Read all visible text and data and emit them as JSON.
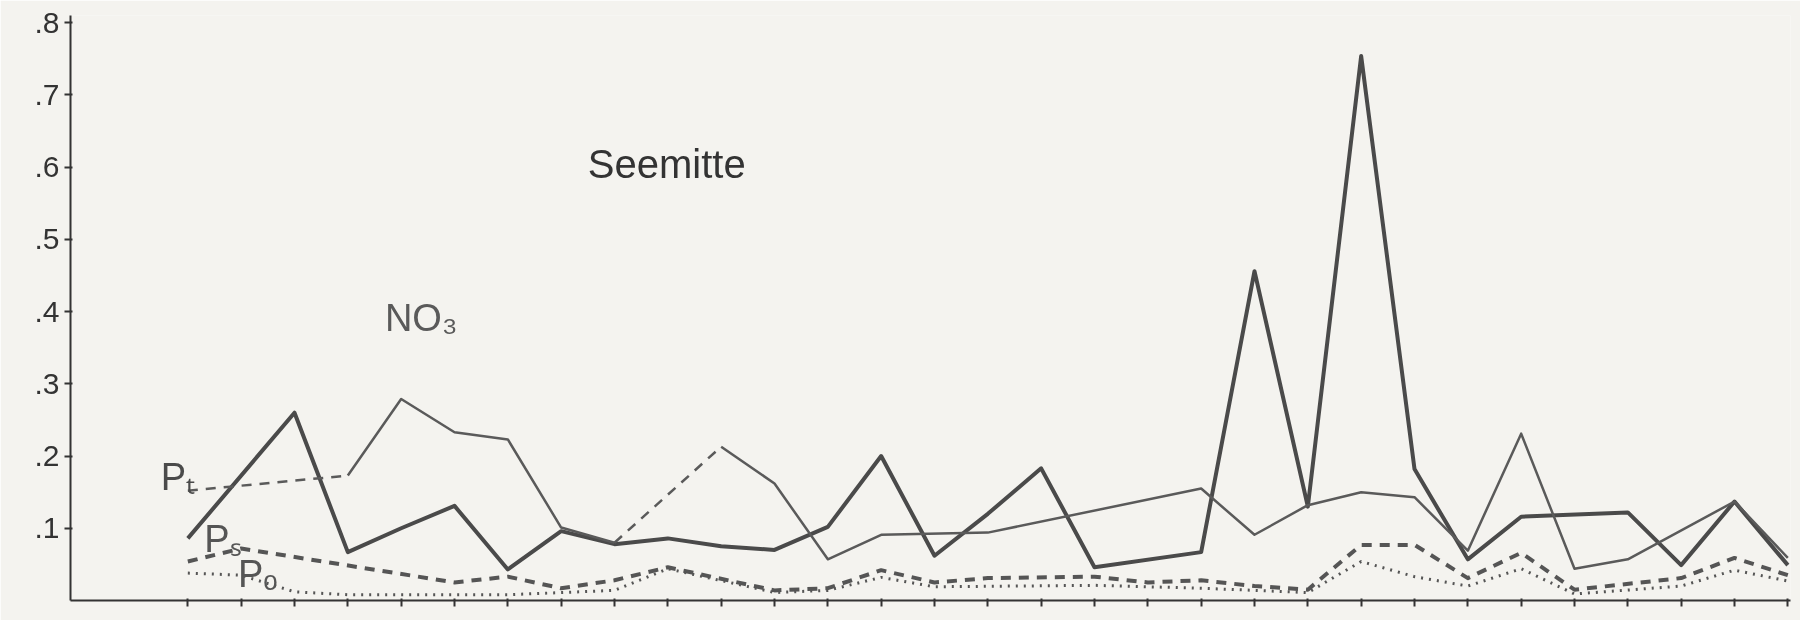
{
  "chart_data": {
    "type": "line",
    "title": "Seemitte",
    "ylim": [
      0,
      0.81
    ],
    "categories": [
      null,
      null,
      null,
      null,
      null,
      null,
      null,
      null,
      null,
      null,
      null,
      null,
      null,
      null,
      null,
      null,
      null,
      null,
      null,
      null,
      null,
      null,
      null,
      null,
      null,
      null,
      null,
      null,
      null,
      null,
      null
    ],
    "yticks": [
      {
        "value": 0.1,
        "label": ".1"
      },
      {
        "value": 0.2,
        "label": ".2"
      },
      {
        "value": 0.3,
        "label": ".3"
      },
      {
        "value": 0.4,
        "label": ".4"
      },
      {
        "value": 0.5,
        "label": ".5"
      },
      {
        "value": 0.6,
        "label": ".6"
      },
      {
        "value": 0.7,
        "label": ".7"
      },
      {
        "value": 0.8,
        "label": ".8"
      }
    ],
    "tick_labels": "y",
    "grid": false,
    "marker": "none",
    "series": [
      {
        "name": "Pₜ",
        "color": "#4a4a4a",
        "line_style": "solid",
        "values": [
          0.086,
          null,
          0.26,
          0.067,
          0.1,
          0.131,
          0.043,
          0.096,
          0.078,
          0.086,
          0.075,
          0.07,
          0.102,
          0.2,
          0.062,
          0.12,
          0.183,
          0.046,
          null,
          0.067,
          0.456,
          0.13,
          0.754,
          0.182,
          0.057,
          0.116,
          null,
          0.122,
          0.049,
          0.137,
          0.049
        ]
      },
      {
        "name": "NO₃",
        "color": "#5a5a5a",
        "line_style": "solid",
        "values": [
          null,
          null,
          null,
          0.173,
          0.279,
          0.233,
          0.223,
          0.101,
          0.08,
          null,
          null,
          null,
          null,
          null,
          null,
          null,
          null,
          null,
          null,
          null,
          null,
          null,
          null,
          null,
          null,
          null,
          null,
          null,
          null,
          null,
          null
        ]
      },
      {
        "color": "#5a5a5a",
        "line_style": "solid",
        "values": [
          null,
          null,
          null,
          null,
          null,
          null,
          null,
          null,
          null,
          null,
          0.213,
          0.162,
          0.057,
          0.091,
          null,
          0.094,
          null,
          null,
          null,
          0.155,
          0.091,
          0.132,
          0.15,
          0.143,
          0.069,
          0.231,
          0.044,
          0.057,
          null,
          0.137,
          0.059
        ]
      },
      {
        "color": "#5a5a5a",
        "line_style": "dashed",
        "values": [
          0.152,
          null,
          null,
          0.173,
          null,
          null,
          null,
          null,
          null,
          null,
          null,
          null,
          null,
          null,
          null,
          null,
          null,
          null,
          null,
          null,
          null,
          null,
          null,
          null,
          null,
          null,
          null,
          null,
          null,
          null,
          null
        ]
      },
      {
        "color": "#5a5a5a",
        "line_style": "dashed",
        "values": [
          null,
          null,
          null,
          null,
          null,
          null,
          null,
          null,
          0.08,
          null,
          0.213,
          null,
          null,
          null,
          null,
          null,
          null,
          null,
          null,
          null,
          null,
          null,
          null,
          null,
          null,
          null,
          null,
          null,
          null,
          null,
          null
        ]
      },
      {
        "name": "Pₛ",
        "color": "#555555",
        "line_style": "dashed",
        "values": [
          0.054,
          0.072,
          null,
          null,
          null,
          0.025,
          0.033,
          0.017,
          0.028,
          0.046,
          null,
          0.014,
          0.017,
          0.042,
          0.025,
          0.031,
          null,
          0.033,
          0.025,
          0.028,
          0.02,
          0.015,
          0.077,
          0.077,
          0.031,
          0.066,
          0.015,
          null,
          0.031,
          0.059,
          0.035
        ]
      },
      {
        "name": "Pₒ",
        "color": "#555555",
        "line_style": "dotted",
        "values": [
          0.038,
          0.035,
          0.012,
          0.008,
          null,
          null,
          0.008,
          null,
          0.014,
          0.044,
          null,
          0.011,
          0.014,
          0.032,
          0.019,
          null,
          null,
          0.021,
          null,
          0.017,
          null,
          0.011,
          0.054,
          0.033,
          0.02,
          0.044,
          0.009,
          null,
          0.02,
          0.042,
          0.027
        ]
      }
    ]
  }
}
